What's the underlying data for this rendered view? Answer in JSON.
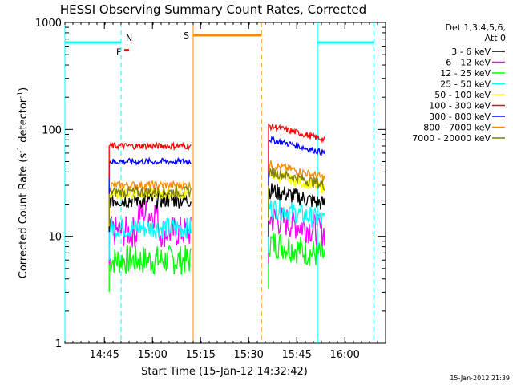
{
  "chart_data": {
    "type": "line",
    "title": "HESSI Observing Summary Count Rates, Corrected",
    "xlabel": "Start Time (15-Jan-12 14:32:42)",
    "ylabel_main": "Corrected Count Rate (s",
    "ylabel_sup1": "-1",
    "ylabel_mid": " detector",
    "ylabel_sup2": "-1",
    "ylabel_end": ")",
    "footer": "15-Jan-2012 21:39",
    "x_unit": "minutes since 14:32:42",
    "x_range": [
      0,
      100
    ],
    "y_scale": "log",
    "y_range": [
      1,
      1000
    ],
    "x_ticks": [
      {
        "label": "14:45",
        "value": 12.3
      },
      {
        "label": "15:00",
        "value": 27.3
      },
      {
        "label": "15:15",
        "value": 42.3
      },
      {
        "label": "15:30",
        "value": 57.3
      },
      {
        "label": "15:45",
        "value": 72.3
      },
      {
        "label": "16:00",
        "value": 87.3
      }
    ],
    "y_ticks": [
      {
        "label": "1",
        "value": 1
      },
      {
        "label": "10",
        "value": 10
      },
      {
        "label": "100",
        "value": 100
      },
      {
        "label": "1000",
        "value": 1000
      }
    ],
    "legend": {
      "header1": "Det 1,3,4,5,6,",
      "header2": "Att 0",
      "position": "right"
    },
    "series": [
      {
        "name": "3 - 6 keV",
        "color": "#000000",
        "values": [
          22,
          20
        ]
      },
      {
        "name": "6 - 12 keV",
        "color": "#ff00ff",
        "values": [
          11,
          11
        ]
      },
      {
        "name": "12 - 25 keV",
        "color": "#00ff00",
        "values": [
          6,
          6.5
        ]
      },
      {
        "name": "25 - 50 keV",
        "color": "#00ffff",
        "values": [
          12,
          14
        ]
      },
      {
        "name": "50 - 100 keV",
        "color": "#ffff00",
        "values": [
          25,
          28
        ]
      },
      {
        "name": "100 - 300 keV",
        "color": "#ff0000",
        "values": [
          70,
          80
        ]
      },
      {
        "name": "300 - 800 keV",
        "color": "#0000ff",
        "values": [
          50,
          60
        ]
      },
      {
        "name": "800 - 7000 keV",
        "color": "#ff8c00",
        "values": [
          30,
          35
        ]
      },
      {
        "name": "7000 - 20000 keV",
        "color": "#808000",
        "values": [
          26,
          30
        ]
      }
    ],
    "segments": [
      {
        "x_start": 13.8,
        "x_end": 39.3
      },
      {
        "x_start": 63.5,
        "x_end": 81.0
      }
    ],
    "night_lines": [
      {
        "x": 0,
        "style": "solid",
        "color": "#00ffff"
      },
      {
        "x": 17.5,
        "style": "dashed",
        "color": "#00ffff"
      },
      {
        "x": 78.8,
        "style": "solid",
        "color": "#00ffff"
      },
      {
        "x": 96.3,
        "style": "dashed",
        "color": "#00ffff"
      }
    ],
    "saa_lines": [
      {
        "x": 40.0,
        "style": "solid",
        "color": "#ff8c00"
      },
      {
        "x": 61.3,
        "style": "dashed",
        "color": "#ff8c00"
      }
    ],
    "flags": [
      {
        "label": "N",
        "color": "#00ffff",
        "x_start": 0,
        "x_end": 17.5,
        "level": 650
      },
      {
        "label": "N",
        "color": "#00ffff",
        "x_start": 78.8,
        "x_end": 96.3,
        "level": 650
      },
      {
        "label": "S",
        "color": "#ff8c00",
        "x_start": 40.0,
        "x_end": 61.3,
        "level": 760
      },
      {
        "label": "F",
        "color": "#ff0000",
        "x_start": 18.5,
        "x_end": 20.0,
        "level": 550
      }
    ],
    "flag_label_N": "N",
    "flag_label_S": "S",
    "flag_label_F": "F"
  }
}
